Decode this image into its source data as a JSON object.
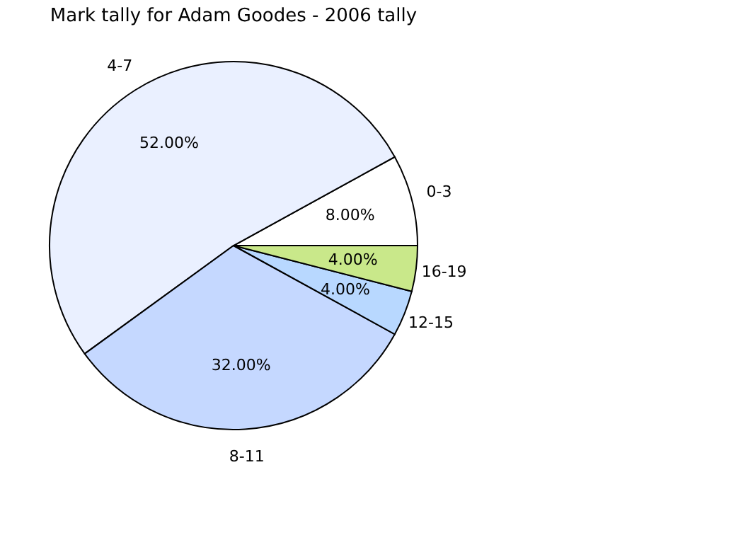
{
  "chart_data": {
    "type": "pie",
    "title": "Mark tally for Adam Goodes - 2006 tally",
    "categories": [
      "0-3",
      "4-7",
      "8-11",
      "12-15",
      "16-19"
    ],
    "values": [
      8,
      52,
      32,
      4,
      4
    ],
    "value_labels": [
      "8.00%",
      "52.00%",
      "32.00%",
      "4.00%",
      "4.00%"
    ],
    "colors": [
      "#ffffff",
      "#eaf0ff",
      "#c5d8ff",
      "#b8d8ff",
      "#c9e88a"
    ],
    "legend": false
  }
}
